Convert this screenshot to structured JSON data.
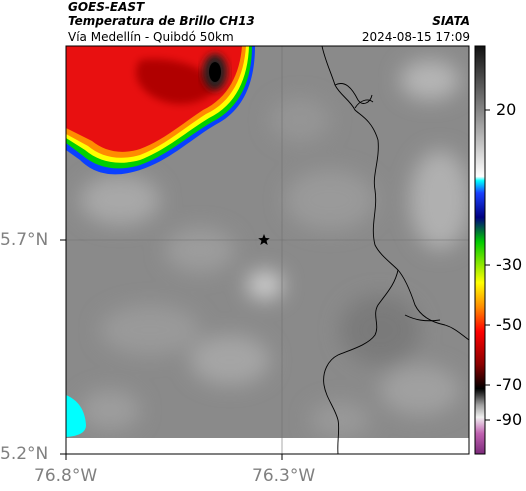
{
  "header": {
    "satellite": "GOES-EAST",
    "product": "Temperatura de Brillo CH13",
    "domain": "Vía Medellín - Quibdó 50km",
    "organization": "SIATA",
    "timestamp": "2024-08-15 17:09"
  },
  "map": {
    "lat_ticks": [
      "5.7°N",
      "5.2°N"
    ],
    "lon_ticks": [
      "76.8°W",
      "76.3°W"
    ],
    "marker_icon": "star-icon"
  },
  "colorbar": {
    "ticks": [
      "20",
      "-30",
      "-50",
      "-70",
      "-90"
    ],
    "colors": [
      "#6a1b7a",
      "#c060b0",
      "#e0e0e0",
      "#000000",
      "#8b0000",
      "#ff0000",
      "#ff8c00",
      "#ffff00",
      "#00cc00",
      "#0000aa",
      "#00ffff",
      "#f5f5f5",
      "#808080",
      "#1a1a1a"
    ]
  }
}
